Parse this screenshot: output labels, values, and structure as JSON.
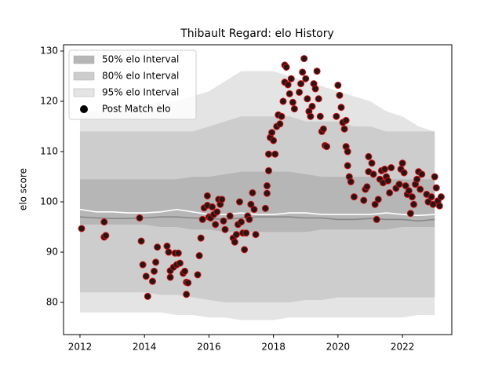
{
  "chart_data": {
    "type": "scatter",
    "title": "Thibault Regard: elo History",
    "ylabel": "elo score",
    "xlim": [
      2011.49,
      2023.53
    ],
    "ylim": [
      73.6,
      131.25
    ],
    "xticks": [
      2012,
      2014,
      2016,
      2018,
      2020,
      2022
    ],
    "yticks": [
      80,
      90,
      100,
      110,
      120,
      130
    ],
    "legend": "upper left",
    "band_x": [
      2012.0,
      2012.5,
      2013.0,
      2013.5,
      2014.0,
      2014.5,
      2015.0,
      2015.5,
      2016.0,
      2016.5,
      2017.0,
      2017.5,
      2018.0,
      2018.5,
      2019.0,
      2019.5,
      2020.0,
      2020.5,
      2021.0,
      2021.5,
      2022.0,
      2022.5,
      2023.0
    ],
    "bands": [
      {
        "name": "95% elo Interval",
        "color": "#e4e4e4",
        "upper": [
          118,
          118,
          118,
          118,
          119,
          120,
          120,
          121,
          122,
          124,
          126,
          126,
          126,
          125,
          124,
          123,
          122,
          121,
          120,
          118,
          117,
          115,
          114
        ],
        "lower": [
          78,
          78,
          78,
          78,
          78,
          78,
          77.5,
          77.5,
          77,
          77,
          76.5,
          76.5,
          76.5,
          77,
          77,
          77,
          77,
          77,
          77,
          77,
          77,
          77.5,
          77.5
        ]
      },
      {
        "name": "80% elo Interval",
        "color": "#cdcdcd",
        "upper": [
          114,
          114,
          114,
          114,
          114,
          114,
          114,
          114,
          115,
          116,
          117,
          117,
          117,
          117,
          116,
          116,
          116,
          115,
          115,
          114,
          114,
          114,
          114
        ],
        "lower": [
          82,
          82,
          82,
          82,
          82,
          81.5,
          81.5,
          81,
          80.5,
          80,
          80,
          80,
          80,
          80,
          80.5,
          80.5,
          81,
          81,
          81,
          81,
          81,
          81,
          81
        ]
      },
      {
        "name": "50% elo Interval",
        "color": "#b6b6b6",
        "upper": [
          104.5,
          104.5,
          104.5,
          104.5,
          104.5,
          104.5,
          104.5,
          105,
          105,
          105.5,
          106,
          106,
          106,
          106,
          105.5,
          105,
          105,
          105,
          105,
          104.5,
          104.5,
          104.5,
          104.5
        ],
        "lower": [
          95.5,
          95.5,
          95.5,
          95.5,
          95.5,
          95,
          95,
          94.5,
          94.5,
          94,
          94,
          94,
          94,
          94,
          94,
          94.5,
          94.5,
          94.5,
          94.5,
          94.5,
          95,
          95,
          95
        ]
      }
    ],
    "lines": [
      {
        "color": "#888888",
        "values": [
          97,
          96.8,
          96.7,
          96.7,
          96.8,
          97,
          97,
          96.8,
          96.7,
          96.5,
          96.8,
          97,
          97,
          97,
          96.8,
          96.8,
          96.5,
          96.5,
          96.7,
          96.5,
          96.5,
          96.2,
          96.5
        ]
      },
      {
        "color": "#ffffff",
        "values": [
          98.5,
          98,
          98,
          97.8,
          97.8,
          98,
          98.5,
          98,
          97.5,
          97.5,
          97.8,
          97.5,
          97.5,
          97.8,
          97.8,
          97.5,
          97.5,
          97.5,
          97.5,
          97.8,
          97.5,
          97.3,
          97.5
        ]
      }
    ],
    "series": [
      {
        "name": "Post Match elo",
        "color": "#2a1414",
        "edgecolor": "#cc1111",
        "x": [
          2012.05,
          2012.75,
          2012.75,
          2012.8,
          2013.85,
          2013.9,
          2013.95,
          2014.05,
          2014.1,
          2014.25,
          2014.3,
          2014.35,
          2014.4,
          2014.7,
          2014.75,
          2014.8,
          2014.8,
          2014.9,
          2014.95,
          2015.0,
          2015.05,
          2015.1,
          2015.2,
          2015.25,
          2015.3,
          2015.3,
          2015.35,
          2015.65,
          2015.7,
          2015.75,
          2015.8,
          2015.85,
          2015.95,
          2015.95,
          2016.0,
          2016.05,
          2016.1,
          2016.15,
          2016.2,
          2016.25,
          2016.3,
          2016.35,
          2016.4,
          2016.45,
          2016.5,
          2016.65,
          2016.75,
          2016.8,
          2016.85,
          2016.9,
          2016.95,
          2017.0,
          2017.05,
          2017.1,
          2017.15,
          2017.2,
          2017.25,
          2017.3,
          2017.35,
          2017.4,
          2017.45,
          2017.75,
          2017.8,
          2017.8,
          2017.85,
          2017.85,
          2017.9,
          2017.95,
          2018.0,
          2018.05,
          2018.1,
          2018.15,
          2018.2,
          2018.25,
          2018.3,
          2018.35,
          2018.35,
          2018.4,
          2018.45,
          2018.5,
          2018.55,
          2018.6,
          2018.65,
          2018.8,
          2018.85,
          2018.9,
          2018.95,
          2019.0,
          2019.05,
          2019.1,
          2019.15,
          2019.2,
          2019.25,
          2019.3,
          2019.35,
          2019.4,
          2019.45,
          2019.5,
          2019.55,
          2019.6,
          2019.65,
          2019.95,
          2020.0,
          2020.05,
          2020.1,
          2020.15,
          2020.2,
          2020.25,
          2020.25,
          2020.3,
          2020.3,
          2020.35,
          2020.4,
          2020.5,
          2020.8,
          2020.85,
          2020.9,
          2020.95,
          2020.95,
          2021.05,
          2021.1,
          2021.15,
          2021.2,
          2021.25,
          2021.3,
          2021.35,
          2021.4,
          2021.45,
          2021.5,
          2021.55,
          2021.6,
          2021.65,
          2021.8,
          2021.9,
          2021.95,
          2022.0,
          2022.05,
          2022.1,
          2022.15,
          2022.2,
          2022.25,
          2022.3,
          2022.35,
          2022.4,
          2022.45,
          2022.5,
          2022.55,
          2022.6,
          2022.75,
          2022.8,
          2022.9,
          2022.95,
          2023.0,
          2023.05,
          2023.1,
          2023.15,
          2023.2
        ],
        "values": [
          94.7,
          96.0,
          93.0,
          93.3,
          96.8,
          92.2,
          87.5,
          85.2,
          81.2,
          84.2,
          86.2,
          88.0,
          91.0,
          91.2,
          90.0,
          86.3,
          85.0,
          87.0,
          89.8,
          87.5,
          89.8,
          87.8,
          85.8,
          86.2,
          84.0,
          81.6,
          83.9,
          85.5,
          89.3,
          92.8,
          96.5,
          98.8,
          99.3,
          101.2,
          97.0,
          96.8,
          99.0,
          97.5,
          95.5,
          98.0,
          100.5,
          99.5,
          100.5,
          96.2,
          94.5,
          97.2,
          92.8,
          92.0,
          93.5,
          95.5,
          100.0,
          96.0,
          93.8,
          90.5,
          93.8,
          97.2,
          96.5,
          99.5,
          101.8,
          98.5,
          93.5,
          98.7,
          101.7,
          103.2,
          106.2,
          109.5,
          112.8,
          113.8,
          112.2,
          109.5,
          115.0,
          117.3,
          115.5,
          117.0,
          120.0,
          123.8,
          127.2,
          126.8,
          123.3,
          121.5,
          124.5,
          119.8,
          118.5,
          121.8,
          123.5,
          125.8,
          128.5,
          124.5,
          120.5,
          118.0,
          117.0,
          119.0,
          123.5,
          122.5,
          126.0,
          120.5,
          117.0,
          114.0,
          114.5,
          111.2,
          111.0,
          117.0,
          123.2,
          121.2,
          118.8,
          115.8,
          114.5,
          116.2,
          111.0,
          110.0,
          107.2,
          105.0,
          104.0,
          101.0,
          100.3,
          102.5,
          103.0,
          106.0,
          109.0,
          107.7,
          105.5,
          99.5,
          96.5,
          100.5,
          104.5,
          106.2,
          103.8,
          106.5,
          105.0,
          104.2,
          101.8,
          106.8,
          102.7,
          103.5,
          106.5,
          107.7,
          105.8,
          103.2,
          101.5,
          102.2,
          97.7,
          101.0,
          99.5,
          103.5,
          104.5,
          106.0,
          102.5,
          105.5,
          101.5,
          100.0,
          101.0,
          99.5,
          105.0,
          102.8,
          100.2,
          99.2,
          101.0
        ]
      }
    ]
  }
}
